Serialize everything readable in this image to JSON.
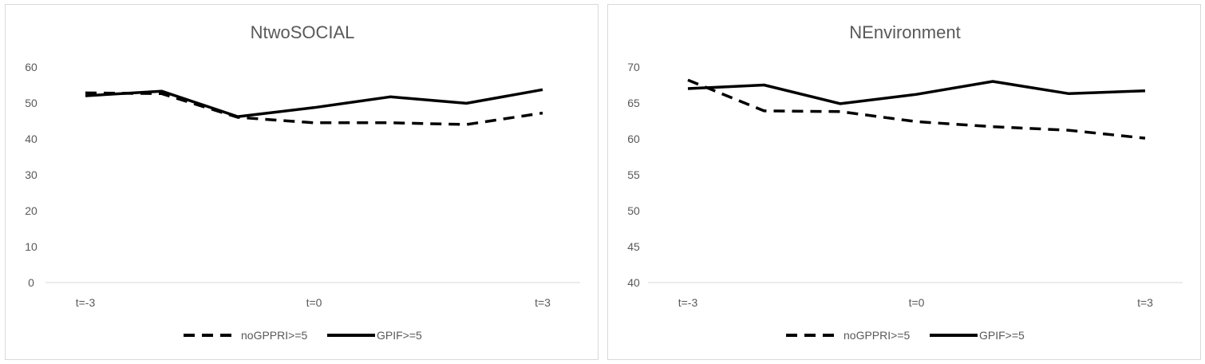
{
  "chart_data": [
    {
      "type": "line",
      "title": "NtwoSOCIAL",
      "x": [
        -3,
        -2,
        -1,
        0,
        1,
        2,
        3
      ],
      "x_tick_labels": [
        "t=-3",
        "t=0",
        "t=3"
      ],
      "ylim": [
        0,
        60
      ],
      "y_ticks": [
        "0",
        "10",
        "20",
        "30",
        "40",
        "50",
        "60"
      ],
      "grid": false,
      "legend_position": "bottom",
      "series": [
        {
          "name": "noGPPRI>=5",
          "style": "dashed",
          "color": "#000000",
          "values": [
            52.8,
            52.6,
            46.0,
            44.5,
            44.5,
            44.0,
            47.2
          ]
        },
        {
          "name": "GPIF>=5",
          "style": "solid",
          "color": "#000000",
          "values": [
            52.0,
            53.3,
            46.2,
            48.7,
            51.7,
            49.9,
            53.7
          ]
        }
      ]
    },
    {
      "type": "line",
      "title": "NEnvironment",
      "x": [
        -3,
        -2,
        -1,
        0,
        1,
        2,
        3
      ],
      "x_tick_labels": [
        "t=-3",
        "t=0",
        "t=3"
      ],
      "ylim": [
        40,
        70
      ],
      "y_ticks": [
        "40",
        "45",
        "50",
        "55",
        "60",
        "65",
        "70"
      ],
      "grid": false,
      "legend_position": "bottom",
      "series": [
        {
          "name": "noGPPRI>=5",
          "style": "dashed",
          "color": "#000000",
          "values": [
            68.2,
            63.9,
            63.8,
            62.4,
            61.7,
            61.2,
            60.1
          ]
        },
        {
          "name": "GPIF>=5",
          "style": "solid",
          "color": "#000000",
          "values": [
            67.0,
            67.5,
            64.9,
            66.2,
            68.0,
            66.3,
            66.7
          ]
        }
      ]
    }
  ]
}
